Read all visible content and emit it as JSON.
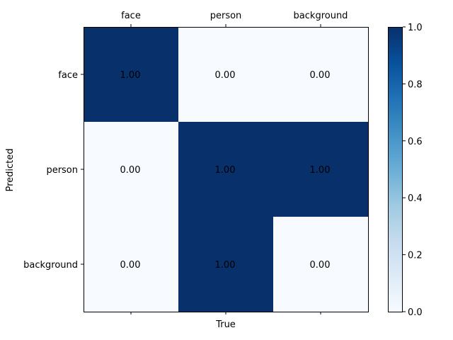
{
  "chart_data": {
    "type": "heatmap",
    "x_categories": [
      "face",
      "person",
      "background"
    ],
    "y_categories": [
      "face",
      "person",
      "background"
    ],
    "values": [
      [
        1.0,
        0.0,
        0.0
      ],
      [
        0.0,
        1.0,
        1.0
      ],
      [
        0.0,
        1.0,
        0.0
      ]
    ],
    "cell_labels": [
      [
        "1.00",
        "0.00",
        "0.00"
      ],
      [
        "0.00",
        "1.00",
        "1.00"
      ],
      [
        "0.00",
        "1.00",
        "0.00"
      ]
    ],
    "xlabel": "True",
    "ylabel": "Predicted",
    "x_tick_position": "top",
    "colormap": "Blues",
    "color_low": "#f7fbff",
    "color_high": "#08306b",
    "colorbar": {
      "range": [
        0.0,
        1.0
      ],
      "ticks": [
        "0.0",
        "0.2",
        "0.4",
        "0.6",
        "0.8",
        "1.0"
      ],
      "placement": "right"
    },
    "grid": false
  }
}
